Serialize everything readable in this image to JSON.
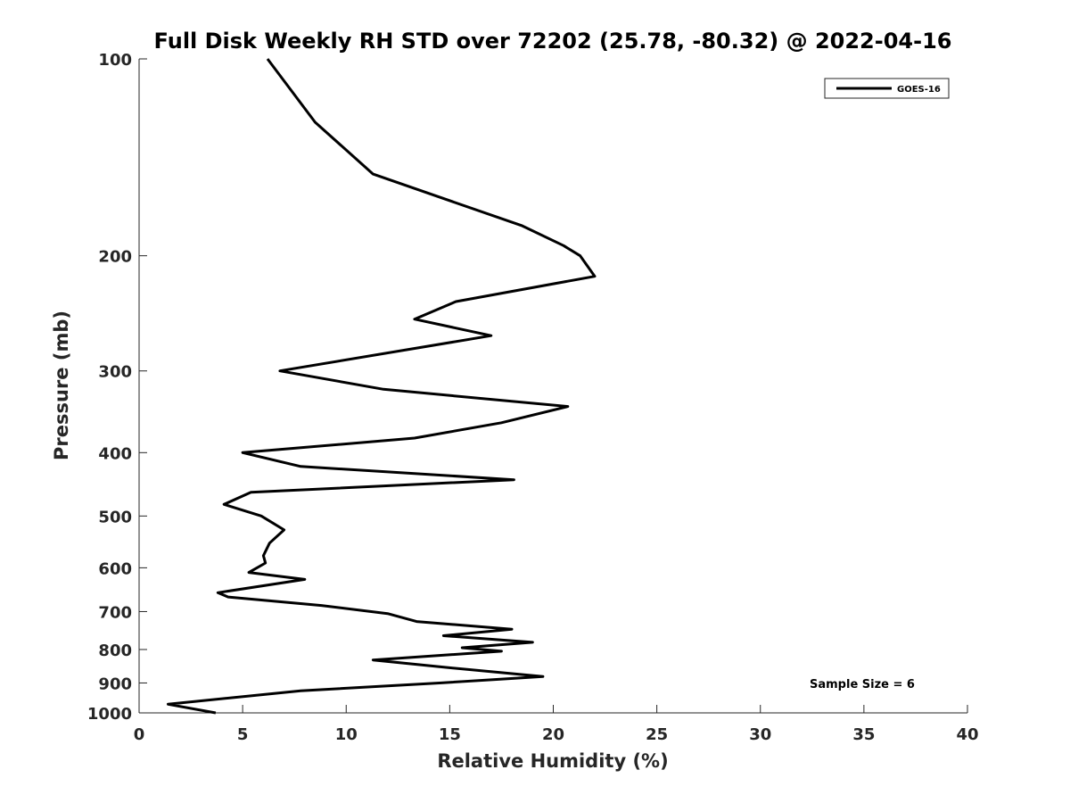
{
  "chart_data": {
    "type": "line",
    "title": "Full Disk Weekly RH STD over 72202 (25.78, -80.32) @ 2022-04-16",
    "xlabel": "Relative Humidity (%)",
    "ylabel": "Pressure (mb)",
    "xlim": [
      0,
      40
    ],
    "ylim": [
      100,
      1000
    ],
    "yscale": "log",
    "y_reversed": true,
    "grid": false,
    "x_ticks": [
      0,
      5,
      10,
      15,
      20,
      25,
      30,
      35,
      40
    ],
    "y_ticks": [
      100,
      200,
      300,
      400,
      500,
      600,
      700,
      800,
      900,
      1000
    ],
    "legend": {
      "position": "top-right"
    },
    "annotation": "Sample Size = 6",
    "series": [
      {
        "name": "GOES-16",
        "color": "#000000",
        "points": [
          [
            6.2,
            100
          ],
          [
            8.5,
            125
          ],
          [
            11.3,
            150
          ],
          [
            18.5,
            180
          ],
          [
            20.5,
            193
          ],
          [
            21.3,
            200
          ],
          [
            22.0,
            215
          ],
          [
            15.3,
            235
          ],
          [
            13.3,
            250
          ],
          [
            17.0,
            265
          ],
          [
            6.8,
            300
          ],
          [
            11.8,
            320
          ],
          [
            20.7,
            340
          ],
          [
            17.5,
            360
          ],
          [
            13.3,
            380
          ],
          [
            5.0,
            400
          ],
          [
            7.8,
            420
          ],
          [
            18.1,
            440
          ],
          [
            5.4,
            460
          ],
          [
            4.1,
            480
          ],
          [
            5.9,
            500
          ],
          [
            7.0,
            525
          ],
          [
            6.3,
            550
          ],
          [
            6.0,
            575
          ],
          [
            6.1,
            590
          ],
          [
            5.3,
            610
          ],
          [
            8.0,
            625
          ],
          [
            3.8,
            655
          ],
          [
            4.3,
            665
          ],
          [
            8.8,
            685
          ],
          [
            12.0,
            705
          ],
          [
            13.4,
            725
          ],
          [
            18.0,
            745
          ],
          [
            14.7,
            762
          ],
          [
            19.0,
            780
          ],
          [
            15.6,
            795
          ],
          [
            17.5,
            805
          ],
          [
            11.3,
            830
          ],
          [
            14.5,
            850
          ],
          [
            19.5,
            880
          ],
          [
            14.5,
            900
          ],
          [
            7.8,
            925
          ],
          [
            1.4,
            970
          ],
          [
            3.7,
            1000
          ]
        ]
      }
    ]
  }
}
